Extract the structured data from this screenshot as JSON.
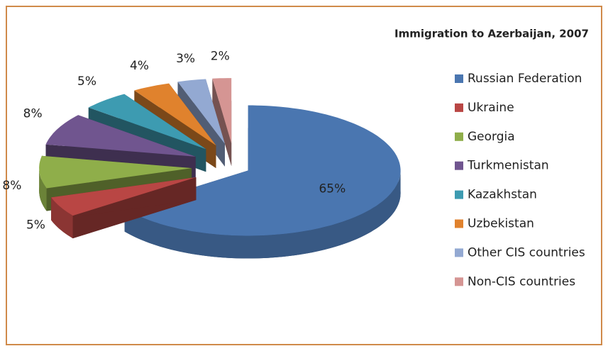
{
  "chart_data": {
    "type": "pie",
    "title": "Immigration to Azerbaijan, 2007",
    "categories": [
      "Russian Federation",
      "Ukraine",
      "Georgia",
      "Turkmenistan",
      "Kazakhstan",
      "Uzbekistan",
      "Other CIS countries",
      "Non-CIS countries"
    ],
    "values": [
      65,
      5,
      8,
      8,
      5,
      4,
      3,
      2
    ],
    "value_labels": [
      "65%",
      "5%",
      "8%",
      "8%",
      "5%",
      "4%",
      "3%",
      "2%"
    ],
    "colors": [
      "#4a76b0",
      "#b94644",
      "#8fae4a",
      "#70558f",
      "#3d9bb1",
      "#e0822d",
      "#93a9d2",
      "#d59593"
    ],
    "legend": "right"
  }
}
